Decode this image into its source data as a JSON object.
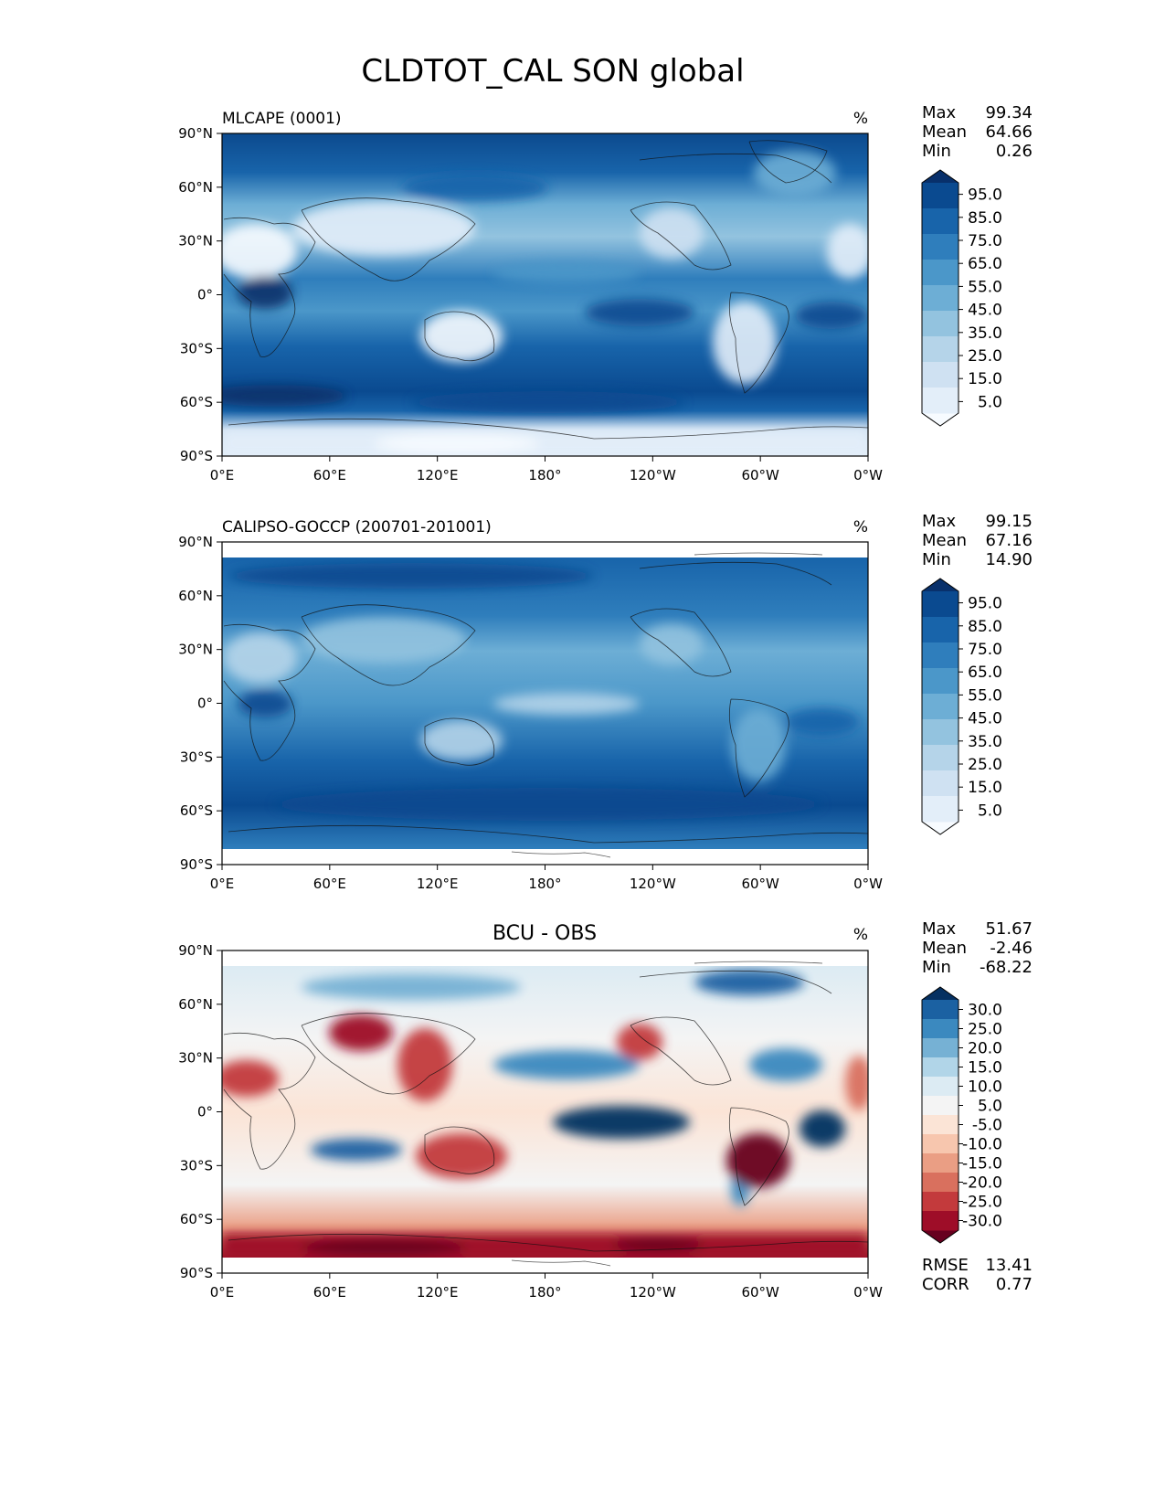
{
  "figure": {
    "title": "CLDTOT_CAL SON global"
  },
  "axes": {
    "lat_ticks": [
      "90°N",
      "60°N",
      "30°N",
      "0°",
      "30°S",
      "60°S",
      "90°S"
    ],
    "lon_ticks": [
      "0°E",
      "60°E",
      "120°E",
      "180°",
      "120°W",
      "60°W",
      "0°W"
    ]
  },
  "chart_data": [
    {
      "type": "heatmap",
      "title": "MLCAPE (0001)",
      "units": "%",
      "stats": {
        "Max": "99.34",
        "Mean": "64.66",
        "Min": "0.26"
      },
      "colorbar": {
        "levels": [
          0,
          5,
          10,
          20,
          30,
          40,
          50,
          60,
          70,
          80,
          90,
          100
        ],
        "labels": [
          "95.0",
          "85.0",
          "75.0",
          "65.0",
          "55.0",
          "45.0",
          "35.0",
          "25.0",
          "15.0",
          "5.0"
        ],
        "colors": [
          "#f7fbff",
          "#e3eef9",
          "#cfe1f2",
          "#b5d4e9",
          "#93c3df",
          "#6daed5",
          "#4b97c9",
          "#2f7ebc",
          "#1864aa",
          "#0a4a90",
          "#08306b"
        ],
        "cmap": "Blues"
      },
      "xlim": [
        0,
        360
      ],
      "ylim": [
        -90,
        90
      ]
    },
    {
      "type": "heatmap",
      "title": "CALIPSO-GOCCP (200701-201001)",
      "units": "%",
      "stats": {
        "Max": "99.15",
        "Mean": "67.16",
        "Min": "14.90"
      },
      "colorbar": {
        "levels": [
          0,
          5,
          10,
          20,
          30,
          40,
          50,
          60,
          70,
          80,
          90,
          100
        ],
        "labels": [
          "95.0",
          "85.0",
          "75.0",
          "65.0",
          "55.0",
          "45.0",
          "35.0",
          "25.0",
          "15.0",
          "5.0"
        ],
        "colors": [
          "#f7fbff",
          "#e3eef9",
          "#cfe1f2",
          "#b5d4e9",
          "#93c3df",
          "#6daed5",
          "#4b97c9",
          "#2f7ebc",
          "#1864aa",
          "#0a4a90",
          "#08306b"
        ],
        "cmap": "Blues"
      },
      "xlim": [
        0,
        360
      ],
      "ylim": [
        -90,
        90
      ]
    },
    {
      "type": "heatmap",
      "title": "BCU - OBS",
      "units": "%",
      "stats": {
        "Max": "51.67",
        "Mean": "-2.46",
        "Min": "-68.22"
      },
      "extra_stats": {
        "RMSE": "13.41",
        "CORR": "0.77"
      },
      "colorbar": {
        "levels": [
          -35,
          -30,
          -25,
          -20,
          -15,
          -10,
          -5,
          5,
          10,
          15,
          20,
          25,
          30,
          35
        ],
        "labels": [
          "30.0",
          "25.0",
          "20.0",
          "15.0",
          "10.0",
          "5.0",
          "-5.0",
          "-10.0",
          "-15.0",
          "-20.0",
          "-25.0",
          "-30.0"
        ],
        "colors": [
          "#67001f",
          "#9e0d28",
          "#c33a3c",
          "#d9705e",
          "#ea9e84",
          "#f7c6ae",
          "#fbe4d6",
          "#f4f4f4",
          "#dcebf3",
          "#b1d5e8",
          "#76b1d4",
          "#3b89bf",
          "#1b61a2",
          "#053061"
        ],
        "cmap": "RdBu_r"
      },
      "xlim": [
        0,
        360
      ],
      "ylim": [
        -90,
        90
      ]
    }
  ]
}
